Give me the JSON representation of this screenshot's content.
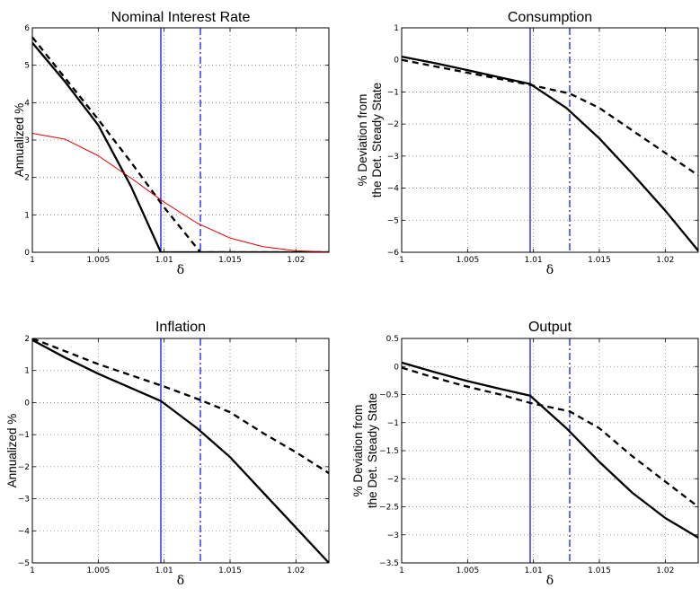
{
  "chart_data": [
    {
      "type": "line",
      "title": "Nominal Interest Rate",
      "xlabel": "δ",
      "ylabel": [
        "Annualized %"
      ],
      "xlim": [
        1,
        1.0225
      ],
      "ylim": [
        0,
        6
      ],
      "xticks": [
        1,
        1.005,
        1.01,
        1.015,
        1.02
      ],
      "xtick_labels": [
        "1",
        "1.005",
        "1.01",
        "1.015",
        "1.02"
      ],
      "yticks": [
        0,
        1,
        2,
        3,
        4,
        5,
        6
      ],
      "ytick_labels": [
        "0",
        "1",
        "2",
        "3",
        "4",
        "5",
        "6"
      ],
      "grid": true,
      "series": [
        {
          "color": "#000000",
          "style": "solid",
          "width": 2.3,
          "x": [
            1,
            1.0025,
            1.005,
            1.0075,
            1.00975,
            1.0125,
            1.015,
            1.0175,
            1.02,
            1.0225
          ],
          "y": [
            5.6,
            4.55,
            3.4,
            1.75,
            0,
            0,
            0,
            0,
            0,
            0
          ]
        },
        {
          "color": "#000000",
          "style": "dashed",
          "width": 2.3,
          "x": [
            1,
            1.0025,
            1.005,
            1.0075,
            1.01,
            1.01275,
            1.015,
            1.0175,
            1.02,
            1.0225
          ],
          "y": [
            5.75,
            4.65,
            3.55,
            2.4,
            1.2,
            0,
            0,
            0,
            0,
            0
          ]
        },
        {
          "color": "#e00000",
          "style": "solid",
          "width": 1,
          "x": [
            1,
            1.0025,
            1.005,
            1.0075,
            1.01,
            1.0125,
            1.015,
            1.0175,
            1.02,
            1.0225
          ],
          "y": [
            3.18,
            3.02,
            2.58,
            1.98,
            1.34,
            0.78,
            0.38,
            0.15,
            0.04,
            0.01
          ]
        }
      ],
      "vlines": [
        {
          "x": 1.00975,
          "color": "#0000ff",
          "style": "solid"
        },
        {
          "x": 1.01275,
          "color": "#0000ff",
          "style": "dashdot"
        }
      ]
    },
    {
      "type": "line",
      "title": "Consumption",
      "xlabel": "δ",
      "ylabel": [
        "% Deviation from",
        "the Det. Steady State"
      ],
      "xlim": [
        1,
        1.0225
      ],
      "ylim": [
        -6,
        1
      ],
      "xticks": [
        1,
        1.005,
        1.01,
        1.015,
        1.02
      ],
      "xtick_labels": [
        "1",
        "1.005",
        "1.01",
        "1.015",
        "1.02"
      ],
      "yticks": [
        -6,
        -5,
        -4,
        -3,
        -2,
        -1,
        0,
        1
      ],
      "ytick_labels": [
        "−6",
        "−5",
        "−4",
        "−3",
        "−2",
        "−1",
        "0",
        "1"
      ],
      "grid": true,
      "series": [
        {
          "color": "#000000",
          "style": "solid",
          "width": 2.3,
          "x": [
            1,
            1.0025,
            1.005,
            1.0075,
            1.00975,
            1.0125,
            1.015,
            1.0175,
            1.02,
            1.0225
          ],
          "y": [
            0.1,
            -0.1,
            -0.32,
            -0.55,
            -0.75,
            -1.5,
            -2.45,
            -3.55,
            -4.7,
            -5.95
          ]
        },
        {
          "color": "#000000",
          "style": "dashed",
          "width": 2.3,
          "x": [
            1,
            1.0025,
            1.005,
            1.0075,
            1.00975,
            1.01275,
            1.015,
            1.0175,
            1.02,
            1.0225
          ],
          "y": [
            0,
            -0.2,
            -0.4,
            -0.6,
            -0.78,
            -1.05,
            -1.5,
            -2.2,
            -2.9,
            -3.6
          ]
        }
      ],
      "vlines": [
        {
          "x": 1.00975,
          "color": "#0000ff",
          "style": "solid"
        },
        {
          "x": 1.01275,
          "color": "#0000ff",
          "style": "dashdot"
        }
      ]
    },
    {
      "type": "line",
      "title": "Inflation",
      "xlabel": "δ",
      "ylabel": [
        "Annualized %"
      ],
      "xlim": [
        1,
        1.0225
      ],
      "ylim": [
        -5,
        2
      ],
      "xticks": [
        1,
        1.005,
        1.01,
        1.015,
        1.02
      ],
      "xtick_labels": [
        "1",
        "1.005",
        "1.01",
        "1.015",
        "1.02"
      ],
      "yticks": [
        -5,
        -4,
        -3,
        -2,
        -1,
        0,
        1,
        2
      ],
      "ytick_labels": [
        "−5",
        "−4",
        "−3",
        "−2",
        "−1",
        "0",
        "1",
        "2"
      ],
      "grid": true,
      "series": [
        {
          "color": "#000000",
          "style": "solid",
          "width": 2.3,
          "x": [
            1,
            1.0025,
            1.005,
            1.0075,
            1.00975,
            1.0125,
            1.015,
            1.0175,
            1.02,
            1.0225
          ],
          "y": [
            1.95,
            1.4,
            0.9,
            0.45,
            0.05,
            -0.8,
            -1.7,
            -2.8,
            -3.9,
            -5.0
          ]
        },
        {
          "color": "#000000",
          "style": "dashed",
          "width": 2.3,
          "x": [
            1,
            1.0025,
            1.005,
            1.0075,
            1.01,
            1.01275,
            1.015,
            1.0175,
            1.02,
            1.0225
          ],
          "y": [
            2.0,
            1.6,
            1.2,
            0.85,
            0.5,
            0.08,
            -0.3,
            -0.95,
            -1.55,
            -2.2
          ]
        }
      ],
      "vlines": [
        {
          "x": 1.00975,
          "color": "#0000ff",
          "style": "solid"
        },
        {
          "x": 1.01275,
          "color": "#0000ff",
          "style": "dashdot"
        }
      ]
    },
    {
      "type": "line",
      "title": "Output",
      "xlabel": "δ",
      "ylabel": [
        "% Deviation from",
        "the Det. Steady State"
      ],
      "xlim": [
        1,
        1.0225
      ],
      "ylim": [
        -3.5,
        0.5
      ],
      "xticks": [
        1,
        1.005,
        1.01,
        1.015,
        1.02
      ],
      "xtick_labels": [
        "1",
        "1.005",
        "1.01",
        "1.015",
        "1.02"
      ],
      "yticks": [
        -3.5,
        -3,
        -2.5,
        -2,
        -1.5,
        -1,
        -0.5,
        0,
        0.5
      ],
      "ytick_labels": [
        "−3.5",
        "−3",
        "−2.5",
        "−2",
        "−1.5",
        "−1",
        "−0.5",
        "0",
        "0.5"
      ],
      "grid": true,
      "series": [
        {
          "color": "#000000",
          "style": "solid",
          "width": 2.3,
          "x": [
            1,
            1.0025,
            1.005,
            1.0075,
            1.00975,
            1.0125,
            1.015,
            1.0175,
            1.02,
            1.0225
          ],
          "y": [
            0.07,
            -0.1,
            -0.26,
            -0.4,
            -0.52,
            -1.1,
            -1.7,
            -2.25,
            -2.7,
            -3.05
          ]
        },
        {
          "color": "#000000",
          "style": "dashed",
          "width": 2.3,
          "x": [
            1,
            1.0025,
            1.005,
            1.0075,
            1.00975,
            1.01275,
            1.015,
            1.0175,
            1.02,
            1.0225
          ],
          "y": [
            -0.02,
            -0.2,
            -0.36,
            -0.5,
            -0.65,
            -0.8,
            -1.1,
            -1.6,
            -2.05,
            -2.5
          ]
        }
      ],
      "vlines": [
        {
          "x": 1.00975,
          "color": "#0000ff",
          "style": "solid"
        },
        {
          "x": 1.01275,
          "color": "#0000ff",
          "style": "dashdot"
        }
      ]
    }
  ]
}
